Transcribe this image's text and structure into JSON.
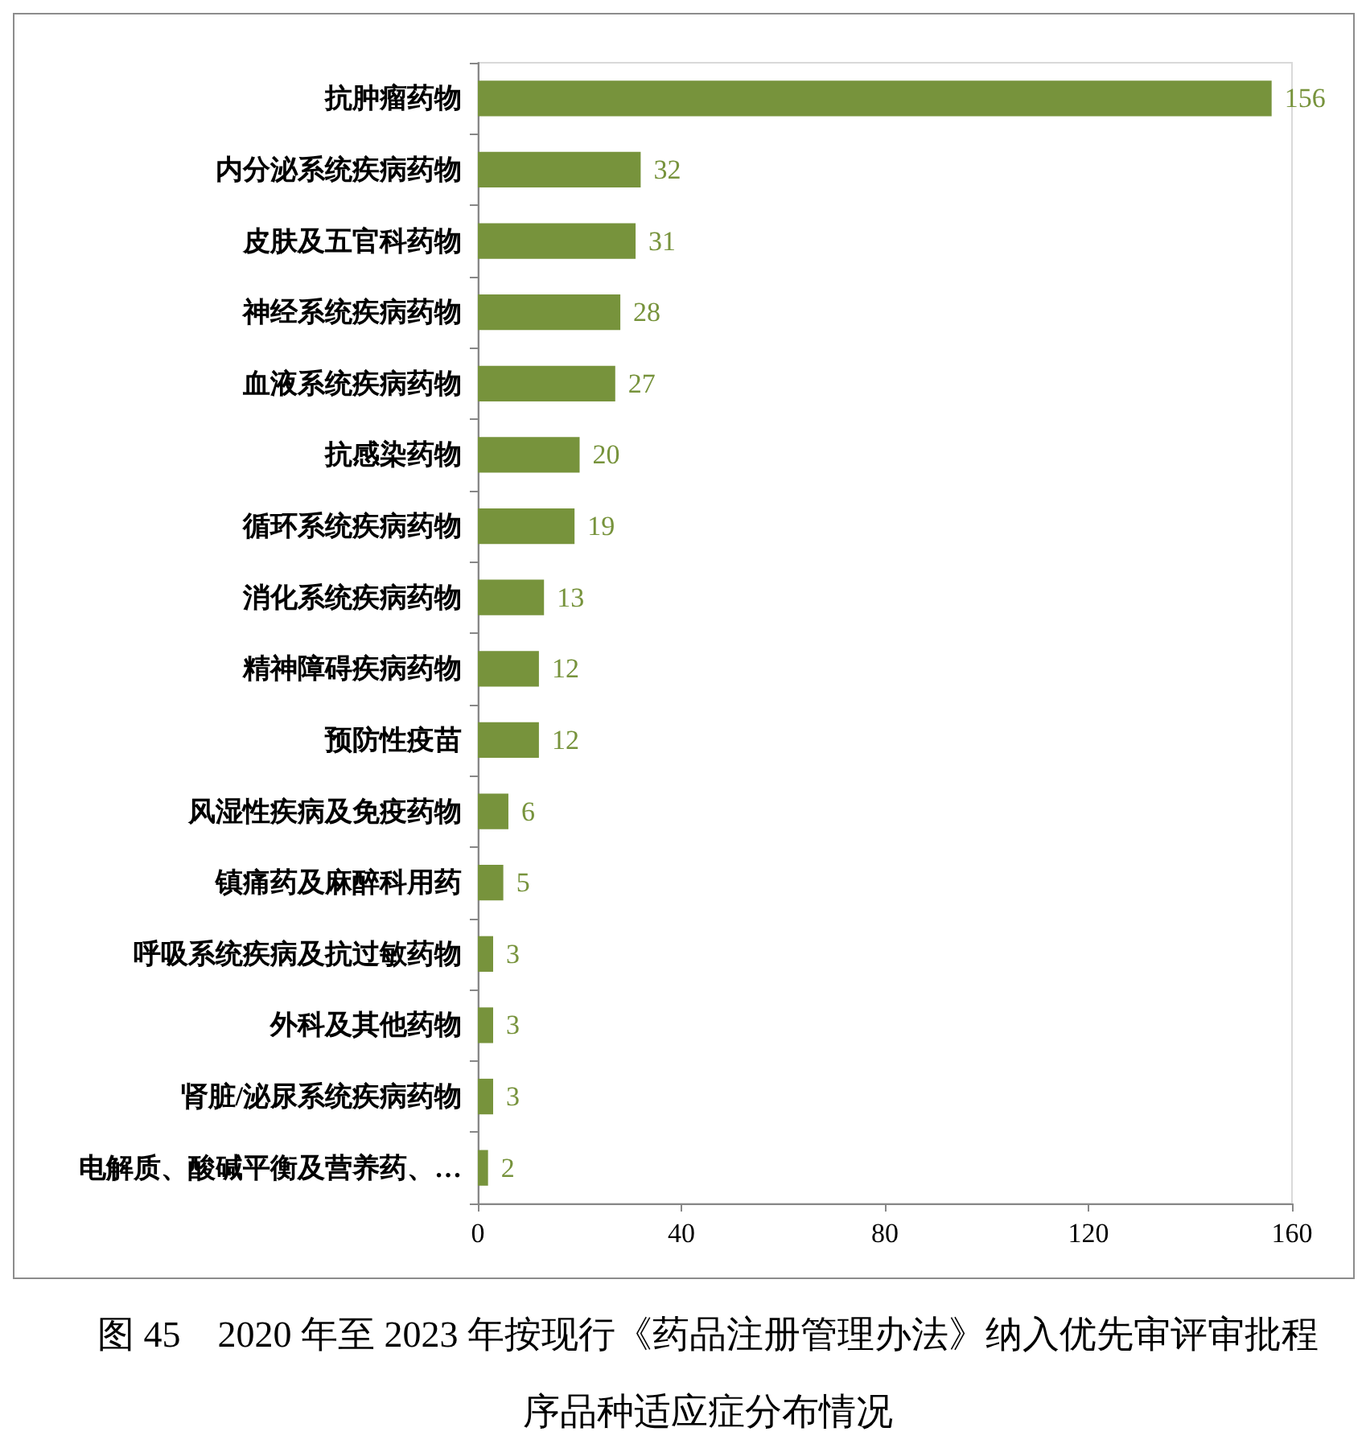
{
  "chart_data": {
    "type": "bar",
    "orientation": "horizontal",
    "title": "图 45　2020 年至 2023 年按现行《药品注册管理办法》纳入优先审评审批程序品种适应症分布情况",
    "categories": [
      "抗肿瘤药物",
      "内分泌系统疾病药物",
      "皮肤及五官科药物",
      "神经系统疾病药物",
      "血液系统疾病药物",
      "抗感染药物",
      "循环系统疾病药物",
      "消化系统疾病药物",
      "精神障碍疾病药物",
      "预防性疫苗",
      "风湿性疾病及免疫药物",
      "镇痛药及麻醉科用药",
      "呼吸系统疾病及抗过敏药物",
      "外科及其他药物",
      "肾脏/泌尿系统疾病药物",
      "电解质、酸碱平衡及营养药、…"
    ],
    "values": [
      156,
      32,
      31,
      28,
      27,
      20,
      19,
      13,
      12,
      12,
      6,
      5,
      3,
      3,
      3,
      2
    ],
    "color": "#77933c",
    "xlim": [
      0,
      160
    ],
    "xticks": [
      0,
      40,
      80,
      120,
      160
    ],
    "data_labels": true
  }
}
